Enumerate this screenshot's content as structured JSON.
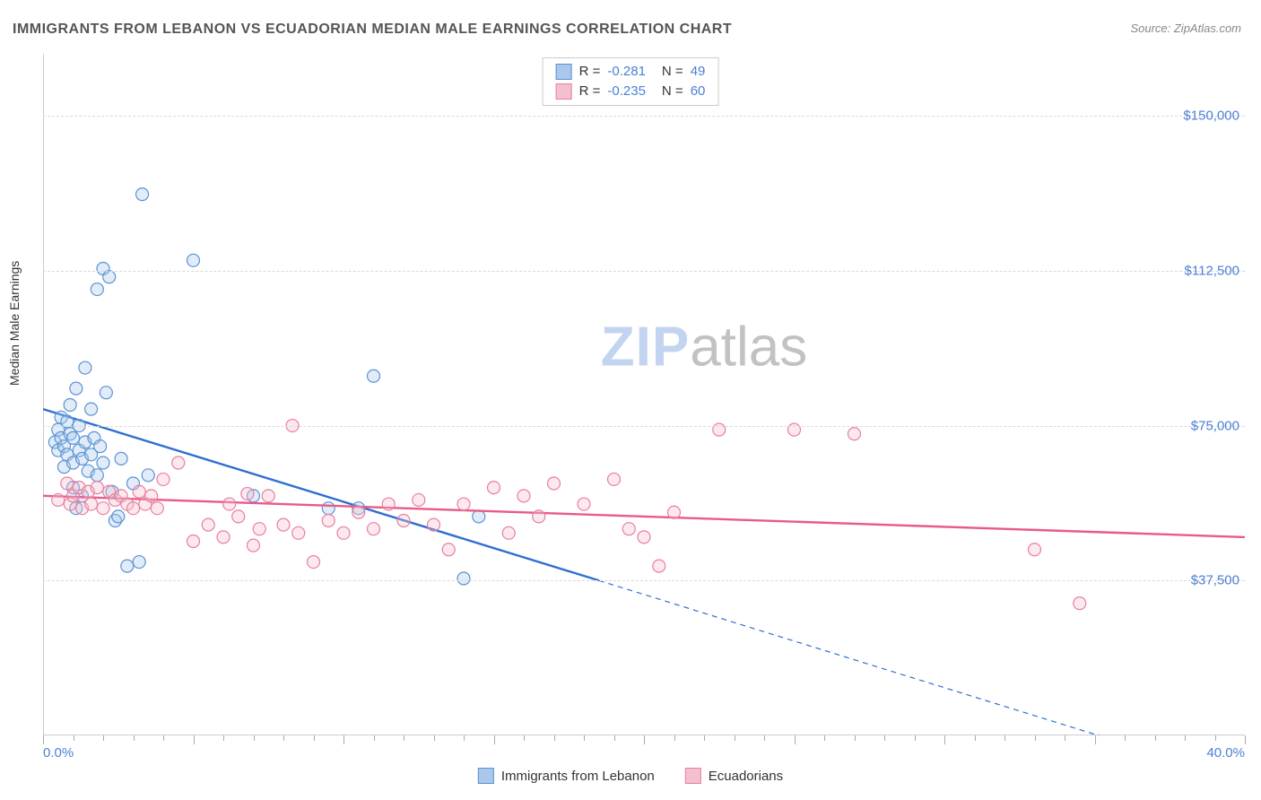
{
  "title": "IMMIGRANTS FROM LEBANON VS ECUADORIAN MEDIAN MALE EARNINGS CORRELATION CHART",
  "source": "Source: ZipAtlas.com",
  "ylabel": "Median Male Earnings",
  "watermark_zip": "ZIP",
  "watermark_atlas": "atlas",
  "chart": {
    "type": "scatter-with-regression",
    "background_color": "#ffffff",
    "grid_color": "#d9d9d9",
    "axis_color": "#cccccc",
    "tick_label_color": "#4a7fd6",
    "tick_fontsize": 15,
    "title_color": "#555555",
    "title_fontsize": 16,
    "xlim": [
      0,
      40
    ],
    "ylim": [
      0,
      165000
    ],
    "ytick_step": 37500,
    "yticks": [
      {
        "v": 37500,
        "label": "$37,500"
      },
      {
        "v": 75000,
        "label": "$75,000"
      },
      {
        "v": 112500,
        "label": "$112,500"
      },
      {
        "v": 150000,
        "label": "$150,000"
      }
    ],
    "xticks_minor_step": 1,
    "xticks_major_step": 5,
    "xlabel_min": "0.0%",
    "xlabel_max": "40.0%",
    "marker_radius": 7,
    "marker_stroke_width": 1.2,
    "marker_fill_opacity": 0.35,
    "regression_line_width": 2.4,
    "series": [
      {
        "name": "Immigrants from Lebanon",
        "color_fill": "#a9c8ea",
        "color_stroke": "#5a93d4",
        "line_color": "#2f6fd0",
        "R": "-0.281",
        "N": "49",
        "regression": {
          "x1": 0,
          "y1": 79000,
          "x2": 18.5,
          "y2": 37500,
          "extend_x2": 40,
          "extend_y2": -11000
        },
        "points": [
          [
            0.4,
            71000
          ],
          [
            0.5,
            74000
          ],
          [
            0.5,
            69000
          ],
          [
            0.6,
            72000
          ],
          [
            0.6,
            77000
          ],
          [
            0.7,
            65000
          ],
          [
            0.7,
            70000
          ],
          [
            0.8,
            68000
          ],
          [
            0.8,
            76000
          ],
          [
            0.9,
            73000
          ],
          [
            0.9,
            80000
          ],
          [
            1.0,
            72000
          ],
          [
            1.0,
            66000
          ],
          [
            1.1,
            84000
          ],
          [
            1.2,
            69000
          ],
          [
            1.2,
            75000
          ],
          [
            1.3,
            67000
          ],
          [
            1.4,
            71000
          ],
          [
            1.4,
            89000
          ],
          [
            1.5,
            64000
          ],
          [
            1.6,
            79000
          ],
          [
            1.6,
            68000
          ],
          [
            1.7,
            72000
          ],
          [
            1.8,
            63000
          ],
          [
            1.8,
            108000
          ],
          [
            1.9,
            70000
          ],
          [
            2.0,
            113000
          ],
          [
            2.0,
            66000
          ],
          [
            2.1,
            83000
          ],
          [
            2.2,
            111000
          ],
          [
            2.3,
            59000
          ],
          [
            2.4,
            52000
          ],
          [
            2.5,
            53000
          ],
          [
            2.6,
            67000
          ],
          [
            2.8,
            41000
          ],
          [
            3.0,
            61000
          ],
          [
            3.2,
            42000
          ],
          [
            3.3,
            131000
          ],
          [
            3.5,
            63000
          ],
          [
            5.0,
            115000
          ],
          [
            1.0,
            60000
          ],
          [
            1.1,
            55000
          ],
          [
            1.3,
            58000
          ],
          [
            7.0,
            58000
          ],
          [
            9.5,
            55000
          ],
          [
            10.5,
            55000
          ],
          [
            11.0,
            87000
          ],
          [
            14.0,
            38000
          ],
          [
            14.5,
            53000
          ]
        ]
      },
      {
        "name": "Ecuadorians",
        "color_fill": "#f4c0cd",
        "color_stroke": "#e97fa0",
        "line_color": "#e85a8a",
        "R": "-0.235",
        "N": "60",
        "regression": {
          "x1": 0,
          "y1": 58000,
          "x2": 40,
          "y2": 48000
        },
        "points": [
          [
            0.5,
            57000
          ],
          [
            0.8,
            61000
          ],
          [
            0.9,
            56000
          ],
          [
            1.0,
            58000
          ],
          [
            1.2,
            60000
          ],
          [
            1.3,
            55000
          ],
          [
            1.5,
            59000
          ],
          [
            1.6,
            56000
          ],
          [
            1.8,
            60000
          ],
          [
            2.0,
            55000
          ],
          [
            2.2,
            59000
          ],
          [
            2.4,
            57000
          ],
          [
            2.6,
            58000
          ],
          [
            2.8,
            56000
          ],
          [
            3.0,
            55000
          ],
          [
            3.2,
            59000
          ],
          [
            3.4,
            56000
          ],
          [
            3.6,
            58000
          ],
          [
            3.8,
            55000
          ],
          [
            4.0,
            62000
          ],
          [
            4.5,
            66000
          ],
          [
            5.0,
            47000
          ],
          [
            5.5,
            51000
          ],
          [
            6.0,
            48000
          ],
          [
            6.2,
            56000
          ],
          [
            6.5,
            53000
          ],
          [
            7.0,
            46000
          ],
          [
            7.2,
            50000
          ],
          [
            7.5,
            58000
          ],
          [
            8.0,
            51000
          ],
          [
            8.3,
            75000
          ],
          [
            8.5,
            49000
          ],
          [
            9.0,
            42000
          ],
          [
            9.5,
            52000
          ],
          [
            10.0,
            49000
          ],
          [
            10.5,
            54000
          ],
          [
            11.0,
            50000
          ],
          [
            11.5,
            56000
          ],
          [
            12.0,
            52000
          ],
          [
            12.5,
            57000
          ],
          [
            13.0,
            51000
          ],
          [
            14.0,
            56000
          ],
          [
            15.0,
            60000
          ],
          [
            15.5,
            49000
          ],
          [
            16.0,
            58000
          ],
          [
            16.5,
            53000
          ],
          [
            17.0,
            61000
          ],
          [
            18.0,
            56000
          ],
          [
            19.0,
            62000
          ],
          [
            19.5,
            50000
          ],
          [
            20.0,
            48000
          ],
          [
            20.5,
            41000
          ],
          [
            21.0,
            54000
          ],
          [
            22.5,
            74000
          ],
          [
            25.0,
            74000
          ],
          [
            27.0,
            73000
          ],
          [
            33.0,
            45000
          ],
          [
            34.5,
            32000
          ],
          [
            13.5,
            45000
          ],
          [
            6.8,
            58500
          ]
        ]
      }
    ]
  },
  "legend_bottom": [
    {
      "swatch_fill": "#a9c8ea",
      "swatch_stroke": "#5a93d4",
      "label": "Immigrants from Lebanon"
    },
    {
      "swatch_fill": "#f4c0cd",
      "swatch_stroke": "#e97fa0",
      "label": "Ecuadorians"
    }
  ]
}
